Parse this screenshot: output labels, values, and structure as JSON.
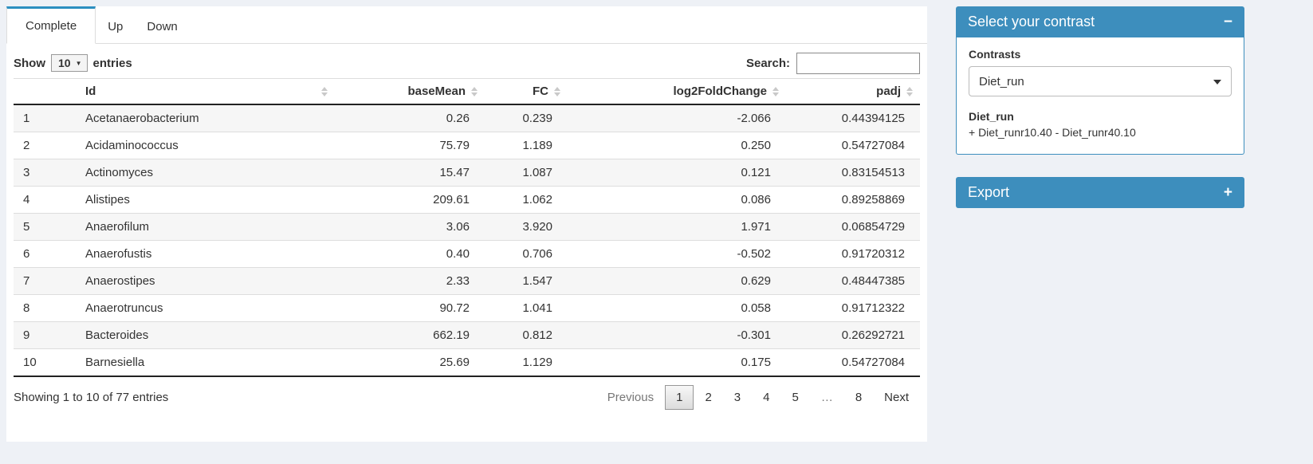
{
  "tabs": [
    {
      "label": "Complete",
      "active": true
    },
    {
      "label": "Up",
      "active": false
    },
    {
      "label": "Down",
      "active": false
    }
  ],
  "length_control": {
    "prefix": "Show",
    "value": "10",
    "suffix": "entries"
  },
  "search": {
    "label": "Search:",
    "value": ""
  },
  "table": {
    "columns": [
      {
        "label": "",
        "sortable": false,
        "align": "left"
      },
      {
        "label": "Id",
        "sortable": true,
        "align": "left"
      },
      {
        "label": "baseMean",
        "sortable": true,
        "align": "right"
      },
      {
        "label": "FC",
        "sortable": true,
        "align": "right"
      },
      {
        "label": "log2FoldChange",
        "sortable": true,
        "align": "right"
      },
      {
        "label": "padj",
        "sortable": true,
        "align": "right"
      }
    ],
    "rows": [
      [
        "1",
        "Acetanaerobacterium",
        "0.26",
        "0.239",
        "-2.066",
        "0.44394125"
      ],
      [
        "2",
        "Acidaminococcus",
        "75.79",
        "1.189",
        "0.250",
        "0.54727084"
      ],
      [
        "3",
        "Actinomyces",
        "15.47",
        "1.087",
        "0.121",
        "0.83154513"
      ],
      [
        "4",
        "Alistipes",
        "209.61",
        "1.062",
        "0.086",
        "0.89258869"
      ],
      [
        "5",
        "Anaerofilum",
        "3.06",
        "3.920",
        "1.971",
        "0.06854729"
      ],
      [
        "6",
        "Anaerofustis",
        "0.40",
        "0.706",
        "-0.502",
        "0.91720312"
      ],
      [
        "7",
        "Anaerostipes",
        "2.33",
        "1.547",
        "0.629",
        "0.48447385"
      ],
      [
        "8",
        "Anaerotruncus",
        "90.72",
        "1.041",
        "0.058",
        "0.91712322"
      ],
      [
        "9",
        "Bacteroides",
        "662.19",
        "0.812",
        "-0.301",
        "0.26292721"
      ],
      [
        "10",
        "Barnesiella",
        "25.69",
        "1.129",
        "0.175",
        "0.54727084"
      ]
    ]
  },
  "footer": {
    "info": "Showing 1 to 10 of 77 entries",
    "pagination": [
      "Previous",
      "1",
      "2",
      "3",
      "4",
      "5",
      "…",
      "8",
      "Next"
    ],
    "current_page": "1"
  },
  "contrast_panel": {
    "title": "Select your contrast",
    "collapse_icon": "−",
    "contrasts_label": "Contrasts",
    "selected_contrast": "Diet_run",
    "detail_title": "Diet_run",
    "detail_formula": "+ Diet_runr10.40 - Diet_runr40.10"
  },
  "export_panel": {
    "title": "Export",
    "collapse_icon": "+"
  },
  "colors": {
    "accent": "#3d8ebd",
    "tab_accent": "#2c8fc0",
    "page_bg": "#eef1f6"
  }
}
